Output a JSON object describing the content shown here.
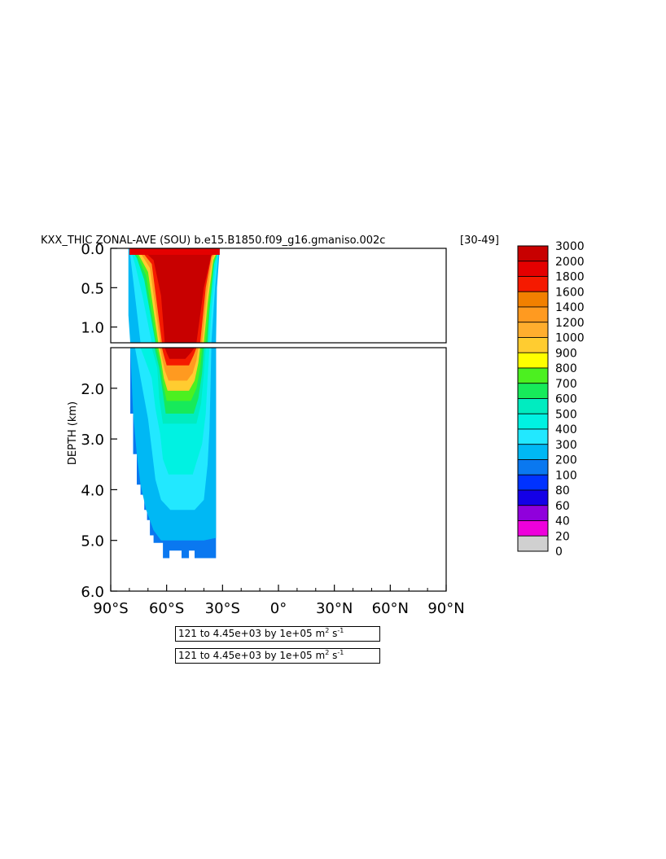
{
  "chart_data": {
    "type": "heatmap",
    "title": "KXX_THIC ZONAL-AVE (SOU) b.e15.B1850.f09_g16.gmaniso.002c",
    "title_period": "[30-49]",
    "ylabel": "DEPTH (km)",
    "xlabel": "",
    "x_range_deg": [
      -90,
      90
    ],
    "y_range_km": [
      0,
      6
    ],
    "upper_panel_y_range_km": [
      0,
      1.2
    ],
    "lower_panel_y_range_km": [
      1.2,
      6
    ],
    "x_tick_labels": [
      "90°S",
      "60°S",
      "30°S",
      "0°",
      "30°N",
      "60°N",
      "90°N"
    ],
    "x_tick_values": [
      -90,
      -60,
      -30,
      0,
      30,
      60,
      90
    ],
    "upper_y_tick_labels": [
      "0.0",
      "0.5",
      "1.0"
    ],
    "upper_y_tick_values": [
      0,
      0.5,
      1.0
    ],
    "lower_y_tick_labels": [
      "2.0",
      "3.0",
      "4.0",
      "5.0",
      "6.0"
    ],
    "lower_y_tick_values": [
      2,
      3,
      4,
      5,
      6
    ],
    "colorbar_levels": [
      "3000",
      "2000",
      "1800",
      "1600",
      "1400",
      "1200",
      "1000",
      "900",
      "800",
      "700",
      "600",
      "500",
      "400",
      "300",
      "200",
      "100",
      "80",
      "60",
      "40",
      "20",
      "0"
    ],
    "colorbar_colors": [
      "#c80000",
      "#e40000",
      "#f51a00",
      "#f28000",
      "#ff9a20",
      "#ffae2e",
      "#ffcc30",
      "#ffff00",
      "#4cf020",
      "#17ea5a",
      "#00ecc0",
      "#00f2e2",
      "#22e8ff",
      "#00b8f4",
      "#0a78f0",
      "#0032ff",
      "#1400e6",
      "#9000dc",
      "#ee00dc",
      "#d0d0d0",
      "#727272"
    ],
    "field_extent_deg": [
      -79,
      -33
    ],
    "field_max_depth_km": 5.35,
    "value_range_note": "121 to 4.45e+03 by 1e+05 m² s⁻¹"
  },
  "info": {
    "line1_main": "121 to 4.45e+03 by 1e+05 m",
    "line1_sup1": "2",
    "line1_mid": " s",
    "line1_sup2": "-1",
    "line2_main": "121 to 4.45e+03 by 1e+05 m",
    "line2_sup1": "2",
    "line2_mid": " s",
    "line2_sup2": "-1"
  }
}
